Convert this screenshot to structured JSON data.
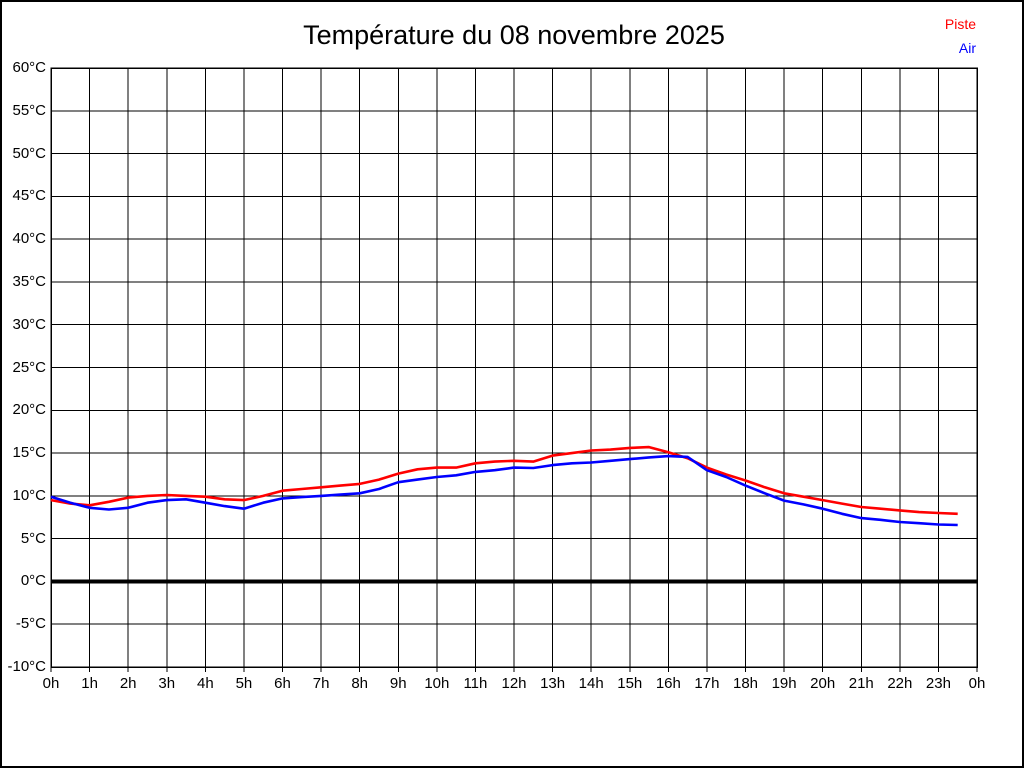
{
  "title": "Température du 08 novembre 2025",
  "legend": [
    {
      "label": "Piste",
      "color": "#ff0000"
    },
    {
      "label": "Air",
      "color": "#0000ff"
    }
  ],
  "chart_data": {
    "type": "line",
    "title": "Température du 08 novembre 2025",
    "xlabel": "",
    "ylabel": "",
    "xlim": [
      0,
      24
    ],
    "ylim": [
      -10,
      60
    ],
    "y_tick_step": 5,
    "y_tick_suffix": "°C",
    "x_tick_labels": [
      "0h",
      "1h",
      "2h",
      "3h",
      "4h",
      "5h",
      "6h",
      "7h",
      "8h",
      "9h",
      "10h",
      "11h",
      "12h",
      "13h",
      "14h",
      "15h",
      "16h",
      "17h",
      "18h",
      "19h",
      "20h",
      "21h",
      "22h",
      "23h",
      "0h"
    ],
    "grid": true,
    "grid_color": "#000000",
    "zero_line_value": 0,
    "zero_line_color": "#000000",
    "legend_position": "top-right",
    "x": [
      0,
      0.5,
      1,
      1.5,
      2,
      2.5,
      3,
      3.5,
      4,
      4.5,
      5,
      5.5,
      6,
      6.5,
      7,
      7.5,
      8,
      8.5,
      9,
      9.5,
      10,
      10.5,
      11,
      11.5,
      12,
      12.5,
      13,
      13.5,
      14,
      14.5,
      15,
      15.5,
      16,
      16.5,
      17,
      17.5,
      18,
      18.5,
      19,
      19.5,
      20,
      20.5,
      21,
      21.5,
      22,
      22.5,
      23,
      23.5
    ],
    "series": [
      {
        "name": "Piste",
        "color": "#ff0000",
        "values": [
          9.5,
          9.1,
          8.9,
          9.3,
          9.8,
          10.0,
          10.1,
          10.0,
          9.9,
          9.6,
          9.5,
          10.0,
          10.6,
          10.8,
          11.0,
          11.2,
          11.4,
          11.9,
          12.6,
          13.1,
          13.3,
          13.3,
          13.8,
          14.0,
          14.1,
          14.0,
          14.7,
          15.0,
          15.3,
          15.4,
          15.6,
          15.7,
          15.1,
          14.4,
          13.3,
          12.5,
          11.8,
          11.0,
          10.3,
          9.9,
          9.5,
          9.1,
          8.7,
          8.5,
          8.3,
          8.1,
          8.0,
          7.9
        ]
      },
      {
        "name": "Air",
        "color": "#0000ff",
        "values": [
          9.9,
          9.2,
          8.6,
          8.4,
          8.6,
          9.2,
          9.5,
          9.6,
          9.2,
          8.8,
          8.5,
          9.2,
          9.7,
          9.85,
          10.0,
          10.15,
          10.3,
          10.8,
          11.6,
          11.9,
          12.2,
          12.4,
          12.8,
          13.0,
          13.3,
          13.25,
          13.6,
          13.8,
          13.9,
          14.1,
          14.3,
          14.5,
          14.65,
          14.55,
          13.0,
          12.2,
          11.2,
          10.3,
          9.45,
          9.0,
          8.5,
          7.9,
          7.4,
          7.2,
          6.95,
          6.8,
          6.65,
          6.6
        ]
      }
    ]
  }
}
